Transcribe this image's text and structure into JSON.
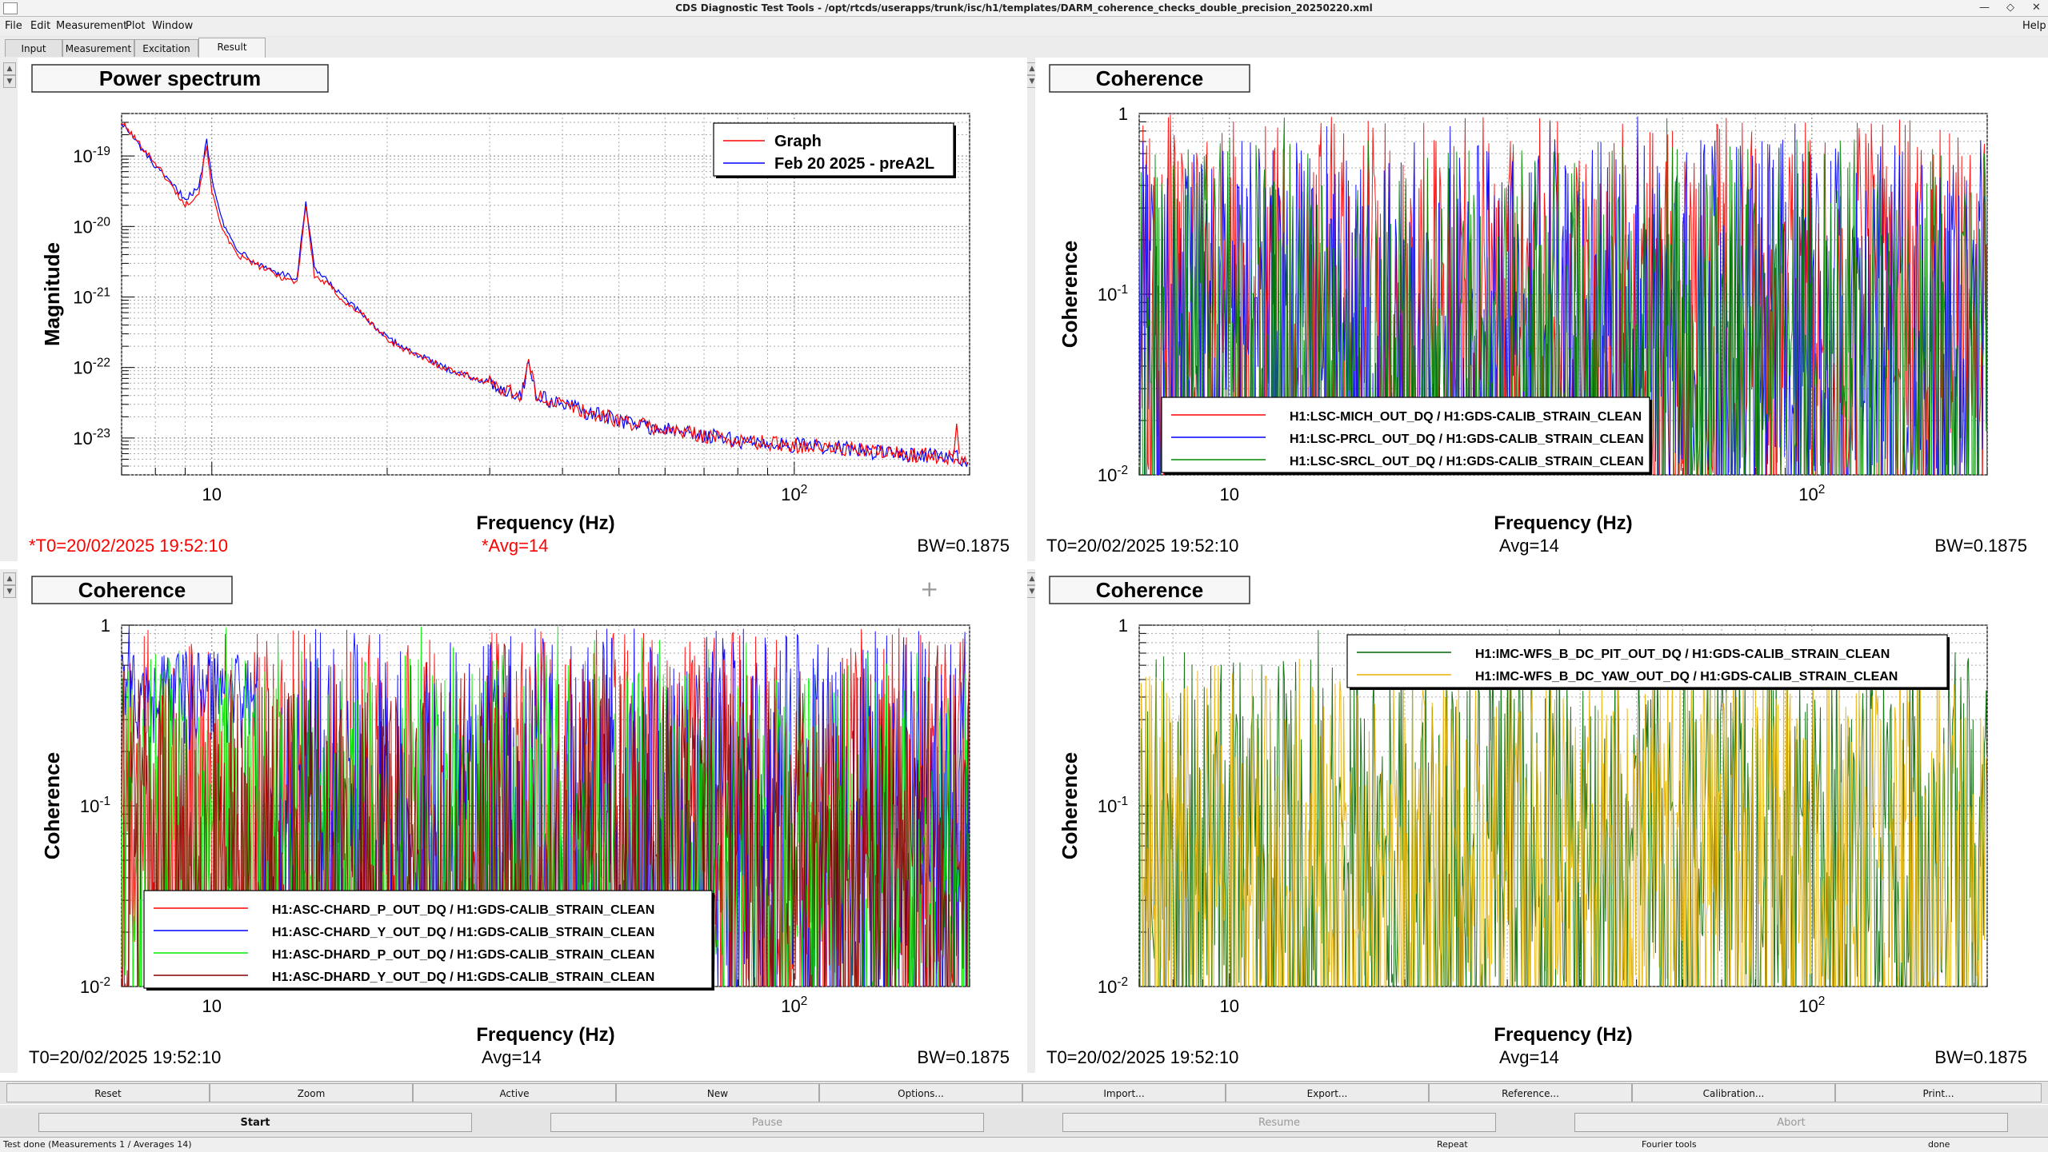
{
  "window": {
    "title": "CDS Diagnostic Test Tools - /opt/rtcds/userapps/trunk/isc/h1/templates/DARM_coherence_checks_double_precision_20250220.xml"
  },
  "menu": {
    "items": [
      "File",
      "Edit",
      "Measurement",
      "Plot",
      "Window"
    ],
    "help": "Help"
  },
  "tabs": [
    {
      "label": "Input"
    },
    {
      "label": "Measurement"
    },
    {
      "label": "Excitation"
    },
    {
      "label": "Result"
    }
  ],
  "colors": {
    "red": "#ff0000",
    "blue": "#0000ff",
    "green": "#008800",
    "lime": "#00ee00",
    "darkred": "#880000",
    "darkgreen": "#006600",
    "gold": "#e8b000"
  },
  "pads": [
    {
      "title": "Power spectrum",
      "xlabel": "Frequency (Hz)",
      "ylabel": "Magnitude",
      "x_tick_major": [
        "10",
        "10^2"
      ],
      "y_ticks": [
        "10^-19",
        "10^-20",
        "10^-21",
        "10^-22",
        "10^-23"
      ],
      "footer": {
        "t0": "*T0=20/02/2025 19:52:10",
        "avg": "*Avg=14",
        "bw": "BW=0.1875",
        "t0_color": "#ff0000",
        "avg_color": "#ff0000"
      },
      "legend": [
        {
          "label": "Graph",
          "color": "#ff0000"
        },
        {
          "label": "Feb 20 2025 - preA2L",
          "color": "#0000ff"
        }
      ]
    },
    {
      "title": "Coherence",
      "xlabel": "Frequency (Hz)",
      "ylabel": "Coherence",
      "x_tick_major": [
        "10",
        "10^2"
      ],
      "y_ticks": [
        "1",
        "10^-1",
        "10^-2"
      ],
      "footer": {
        "t0": "T0=20/02/2025 19:52:10",
        "avg": "Avg=14",
        "bw": "BW=0.1875"
      },
      "legend": [
        {
          "label": "H1:LSC-MICH_OUT_DQ / H1:GDS-CALIB_STRAIN_CLEAN",
          "color": "#ff0000"
        },
        {
          "label": "H1:LSC-PRCL_OUT_DQ / H1:GDS-CALIB_STRAIN_CLEAN",
          "color": "#0000ff"
        },
        {
          "label": "H1:LSC-SRCL_OUT_DQ / H1:GDS-CALIB_STRAIN_CLEAN",
          "color": "#008800"
        }
      ]
    },
    {
      "title": "Coherence",
      "xlabel": "Frequency (Hz)",
      "ylabel": "Coherence",
      "x_tick_major": [
        "10",
        "10^2"
      ],
      "y_ticks": [
        "1",
        "10^-1",
        "10^-2"
      ],
      "footer": {
        "t0": "T0=20/02/2025 19:52:10",
        "avg": "Avg=14",
        "bw": "BW=0.1875"
      },
      "legend": [
        {
          "label": "H1:ASC-CHARD_P_OUT_DQ / H1:GDS-CALIB_STRAIN_CLEAN",
          "color": "#ff0000"
        },
        {
          "label": "H1:ASC-CHARD_Y_OUT_DQ / H1:GDS-CALIB_STRAIN_CLEAN",
          "color": "#0000ff"
        },
        {
          "label": "H1:ASC-DHARD_P_OUT_DQ / H1:GDS-CALIB_STRAIN_CLEAN",
          "color": "#00ee00"
        },
        {
          "label": "H1:ASC-DHARD_Y_OUT_DQ / H1:GDS-CALIB_STRAIN_CLEAN",
          "color": "#880000"
        }
      ]
    },
    {
      "title": "Coherence",
      "xlabel": "Frequency (Hz)",
      "ylabel": "Coherence",
      "x_tick_major": [
        "10",
        "10^2"
      ],
      "y_ticks": [
        "1",
        "10^-1",
        "10^-2"
      ],
      "footer": {
        "t0": "T0=20/02/2025 19:52:10",
        "avg": "Avg=14",
        "bw": "BW=0.1875"
      },
      "legend": [
        {
          "label": "H1:IMC-WFS_B_DC_PIT_OUT_DQ / H1:GDS-CALIB_STRAIN_CLEAN",
          "color": "#006600"
        },
        {
          "label": "H1:IMC-WFS_B_DC_YAW_OUT_DQ / H1:GDS-CALIB_STRAIN_CLEAN",
          "color": "#e8b000"
        }
      ]
    }
  ],
  "chart_data": [
    {
      "type": "line",
      "title": "Power spectrum",
      "xlabel": "Frequency (Hz)",
      "ylabel": "Magnitude",
      "xscale": "log",
      "yscale": "log",
      "xlim": [
        7,
        200
      ],
      "ylim": [
        3e-24,
        4e-19
      ],
      "series": [
        {
          "name": "Graph",
          "x": [
            7,
            8,
            9,
            9.5,
            9.8,
            10,
            10.5,
            11,
            12,
            13,
            14,
            14.5,
            15,
            16,
            17,
            18,
            20,
            22,
            25,
            30,
            34,
            35,
            36,
            40,
            45,
            50,
            60,
            70,
            80,
            100,
            120,
            150,
            180,
            200
          ],
          "y": [
            3e-19,
            8e-20,
            2e-20,
            3e-20,
            1.5e-19,
            3e-20,
            8e-21,
            4e-21,
            2.8e-21,
            2e-21,
            1.6e-21,
            2e-20,
            2e-21,
            1.4e-21,
            8e-22,
            6e-22,
            2.5e-22,
            1.6e-22,
            1e-22,
            6e-23,
            4e-23,
            1.2e-22,
            4e-23,
            3e-23,
            2.2e-23,
            1.8e-23,
            1.3e-23,
            1.1e-23,
            9e-24,
            8e-24,
            7e-24,
            6e-24,
            5.5e-24,
            5e-24
          ]
        },
        {
          "name": "Feb 20 2025 - preA2L",
          "x": [
            7,
            8,
            9,
            9.5,
            9.8,
            10,
            10.5,
            11,
            12,
            13,
            14,
            14.5,
            15,
            16,
            17,
            18,
            20,
            22,
            25,
            30,
            34,
            35,
            36,
            40,
            45,
            50,
            60,
            70,
            80,
            100,
            120,
            150,
            180,
            200
          ],
          "y": [
            3e-19,
            7e-20,
            2.5e-20,
            3.5e-20,
            1.7e-19,
            5e-20,
            1e-20,
            5e-21,
            3e-21,
            2.2e-21,
            1.8e-21,
            2.2e-20,
            2.5e-21,
            1.5e-21,
            9e-22,
            6e-22,
            2.6e-22,
            1.7e-22,
            1e-22,
            6e-23,
            4e-23,
            1.3e-22,
            4e-23,
            3e-23,
            2.2e-23,
            1.8e-23,
            1.3e-23,
            1.1e-23,
            9e-24,
            8e-24,
            7e-24,
            6e-24,
            5.5e-24,
            5e-24
          ]
        }
      ]
    },
    {
      "type": "line",
      "title": "Coherence",
      "xlabel": "Frequency (Hz)",
      "ylabel": "Coherence",
      "xscale": "log",
      "yscale": "log",
      "xlim": [
        7,
        200
      ],
      "ylim": [
        0.01,
        1
      ],
      "seed": 11,
      "series": [
        {
          "name": "H1:LSC-MICH_OUT_DQ / H1:GDS-CALIB_STRAIN_CLEAN",
          "level": 0.08
        },
        {
          "name": "H1:LSC-PRCL_OUT_DQ / H1:GDS-CALIB_STRAIN_CLEAN",
          "level": 0.06
        },
        {
          "name": "H1:LSC-SRCL_OUT_DQ / H1:GDS-CALIB_STRAIN_CLEAN",
          "level": 0.06
        }
      ]
    },
    {
      "type": "line",
      "title": "Coherence",
      "xlabel": "Frequency (Hz)",
      "ylabel": "Coherence",
      "xscale": "log",
      "yscale": "log",
      "xlim": [
        7,
        200
      ],
      "ylim": [
        0.01,
        1
      ],
      "seed": 23,
      "series": [
        {
          "name": "H1:ASC-CHARD_P_OUT_DQ / H1:GDS-CALIB_STRAIN_CLEAN",
          "level": 0.08
        },
        {
          "name": "H1:ASC-CHARD_Y_OUT_DQ / H1:GDS-CALIB_STRAIN_CLEAN",
          "level": 0.08
        },
        {
          "name": "H1:ASC-DHARD_P_OUT_DQ / H1:GDS-CALIB_STRAIN_CLEAN",
          "level": 0.06
        },
        {
          "name": "H1:ASC-DHARD_Y_OUT_DQ / H1:GDS-CALIB_STRAIN_CLEAN",
          "level": 0.05
        }
      ]
    },
    {
      "type": "line",
      "title": "Coherence",
      "xlabel": "Frequency (Hz)",
      "ylabel": "Coherence",
      "xscale": "log",
      "yscale": "log",
      "xlim": [
        7,
        200
      ],
      "ylim": [
        0.01,
        1
      ],
      "seed": 37,
      "series": [
        {
          "name": "H1:IMC-WFS_B_DC_PIT_OUT_DQ / H1:GDS-CALIB_STRAIN_CLEAN",
          "level": 0.06
        },
        {
          "name": "H1:IMC-WFS_B_DC_YAW_OUT_DQ / H1:GDS-CALIB_STRAIN_CLEAN",
          "level": 0.05
        }
      ]
    }
  ],
  "buttons": {
    "row1": [
      "Reset",
      "Zoom",
      "Active",
      "New",
      "Options...",
      "Import...",
      "Export...",
      "Reference...",
      "Calibration...",
      "Print..."
    ],
    "start": "Start",
    "pause": "Pause",
    "resume": "Resume",
    "abort": "Abort"
  },
  "status": {
    "left": "Test done (Measurements 1 / Averages 14)",
    "repeat": "Repeat",
    "fourier": "Fourier tools",
    "state": "done"
  }
}
